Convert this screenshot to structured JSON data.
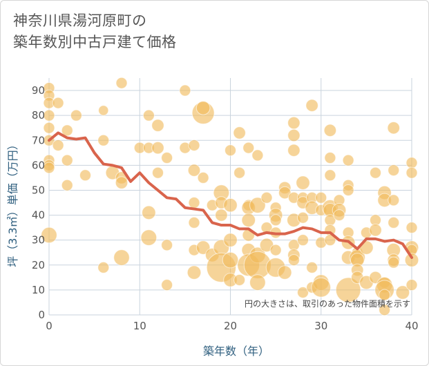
{
  "title_lines": [
    "神奈川県湯河原町の",
    "築年数別中古戸建て価格"
  ],
  "chart_data": {
    "type": "scatter",
    "title": "神奈川県湯河原町の築年数別中古戸建て価格",
    "xlabel": "築年数（年）",
    "ylabel": "坪（3.3㎡）単価（万円）",
    "xlim": [
      0,
      40
    ],
    "ylim": [
      0,
      95
    ],
    "xticks": [
      0,
      10,
      20,
      30,
      40
    ],
    "yticks": [
      0,
      10,
      20,
      30,
      40,
      50,
      60,
      70,
      80,
      90
    ],
    "grid": true,
    "note": "円の大きさは、取引のあった物件面積を示す",
    "colors": {
      "bubble": "#f0b95a",
      "line": "#d9644c",
      "grid": "#c9d3dd",
      "axis_title": "#2f5f7f"
    },
    "series": [
      {
        "type": "scatter",
        "points": [
          {
            "x": 0,
            "y": 91,
            "s": 1
          },
          {
            "x": 0,
            "y": 88,
            "s": 1
          },
          {
            "x": 0,
            "y": 85,
            "s": 1
          },
          {
            "x": 0,
            "y": 80,
            "s": 1
          },
          {
            "x": 0,
            "y": 75,
            "s": 1
          },
          {
            "x": 0,
            "y": 70,
            "s": 1
          },
          {
            "x": 0,
            "y": 62,
            "s": 1
          },
          {
            "x": 0,
            "y": 60,
            "s": 1
          },
          {
            "x": 0,
            "y": 59,
            "s": 1
          },
          {
            "x": 0,
            "y": 32,
            "s": 2
          },
          {
            "x": 1,
            "y": 85,
            "s": 1
          },
          {
            "x": 1,
            "y": 68,
            "s": 1
          },
          {
            "x": 2,
            "y": 74,
            "s": 1
          },
          {
            "x": 2,
            "y": 62,
            "s": 1
          },
          {
            "x": 2,
            "y": 52,
            "s": 1
          },
          {
            "x": 3,
            "y": 80,
            "s": 1
          },
          {
            "x": 4,
            "y": 56,
            "s": 1
          },
          {
            "x": 6,
            "y": 82,
            "s": 0.8
          },
          {
            "x": 6,
            "y": 70,
            "s": 1
          },
          {
            "x": 6,
            "y": 19,
            "s": 1
          },
          {
            "x": 7,
            "y": 57,
            "s": 1.5
          },
          {
            "x": 8,
            "y": 93,
            "s": 1
          },
          {
            "x": 8,
            "y": 55,
            "s": 1.2
          },
          {
            "x": 8,
            "y": 53,
            "s": 1.2
          },
          {
            "x": 8,
            "y": 23,
            "s": 2
          },
          {
            "x": 10,
            "y": 67,
            "s": 1
          },
          {
            "x": 11,
            "y": 80,
            "s": 1
          },
          {
            "x": 11,
            "y": 67,
            "s": 1
          },
          {
            "x": 11,
            "y": 41,
            "s": 1.5
          },
          {
            "x": 11,
            "y": 31,
            "s": 2
          },
          {
            "x": 12,
            "y": 76,
            "s": 1.2
          },
          {
            "x": 12,
            "y": 67,
            "s": 1.2
          },
          {
            "x": 12,
            "y": 57,
            "s": 1
          },
          {
            "x": 13,
            "y": 63,
            "s": 1
          },
          {
            "x": 13,
            "y": 28,
            "s": 1
          },
          {
            "x": 13,
            "y": 12,
            "s": 1
          },
          {
            "x": 15,
            "y": 90,
            "s": 1
          },
          {
            "x": 15,
            "y": 67,
            "s": 1
          },
          {
            "x": 16,
            "y": 68,
            "s": 1
          },
          {
            "x": 16,
            "y": 58,
            "s": 1.2
          },
          {
            "x": 16,
            "y": 45,
            "s": 1
          },
          {
            "x": 16,
            "y": 37,
            "s": 1
          },
          {
            "x": 16,
            "y": 26,
            "s": 1
          },
          {
            "x": 16,
            "y": 17,
            "s": 1.5
          },
          {
            "x": 17,
            "y": 81,
            "s": 4
          },
          {
            "x": 17,
            "y": 83,
            "s": 1.5
          },
          {
            "x": 17,
            "y": 55,
            "s": 1
          },
          {
            "x": 17,
            "y": 27,
            "s": 1.5
          },
          {
            "x": 18,
            "y": 44,
            "s": 1
          },
          {
            "x": 18,
            "y": 24,
            "s": 1.5
          },
          {
            "x": 19,
            "y": 49,
            "s": 2
          },
          {
            "x": 19,
            "y": 45,
            "s": 1.2
          },
          {
            "x": 19,
            "y": 40,
            "s": 1.2
          },
          {
            "x": 19,
            "y": 27,
            "s": 2
          },
          {
            "x": 19,
            "y": 19,
            "s": 7
          },
          {
            "x": 20,
            "y": 66,
            "s": 1
          },
          {
            "x": 20,
            "y": 44,
            "s": 1.5
          },
          {
            "x": 20,
            "y": 30,
            "s": 1.5
          },
          {
            "x": 20,
            "y": 22,
            "s": 2
          },
          {
            "x": 20,
            "y": 14,
            "s": 1.5
          },
          {
            "x": 21,
            "y": 73,
            "s": 1.2
          },
          {
            "x": 21,
            "y": 57,
            "s": 1
          },
          {
            "x": 21,
            "y": 14,
            "s": 1
          },
          {
            "x": 22,
            "y": 67,
            "s": 1
          },
          {
            "x": 22,
            "y": 44,
            "s": 1
          },
          {
            "x": 22,
            "y": 43,
            "s": 1.5
          },
          {
            "x": 22,
            "y": 38,
            "s": 1.5
          },
          {
            "x": 22,
            "y": 32,
            "s": 1.2
          },
          {
            "x": 22,
            "y": 26,
            "s": 1.5
          },
          {
            "x": 22,
            "y": 20,
            "s": 4
          },
          {
            "x": 23,
            "y": 64,
            "s": 1
          },
          {
            "x": 23,
            "y": 44,
            "s": 2
          },
          {
            "x": 23,
            "y": 24,
            "s": 2
          },
          {
            "x": 23,
            "y": 20,
            "s": 6
          },
          {
            "x": 23,
            "y": 13,
            "s": 2
          },
          {
            "x": 24,
            "y": 47,
            "s": 1
          },
          {
            "x": 24,
            "y": 35,
            "s": 1
          },
          {
            "x": 24,
            "y": 28,
            "s": 1.5
          },
          {
            "x": 25,
            "y": 43,
            "s": 1
          },
          {
            "x": 25,
            "y": 40,
            "s": 1.5
          },
          {
            "x": 25,
            "y": 38,
            "s": 1
          },
          {
            "x": 25,
            "y": 33,
            "s": 1
          },
          {
            "x": 25,
            "y": 26,
            "s": 1
          },
          {
            "x": 25,
            "y": 19,
            "s": 3
          },
          {
            "x": 26,
            "y": 51,
            "s": 1.2
          },
          {
            "x": 26,
            "y": 49,
            "s": 1.2
          },
          {
            "x": 26,
            "y": 17,
            "s": 1.5
          },
          {
            "x": 27,
            "y": 77,
            "s": 1.2
          },
          {
            "x": 27,
            "y": 72,
            "s": 1.2
          },
          {
            "x": 27,
            "y": 66,
            "s": 1.2
          },
          {
            "x": 27,
            "y": 47,
            "s": 1
          },
          {
            "x": 27,
            "y": 38,
            "s": 1.5
          },
          {
            "x": 27,
            "y": 28,
            "s": 1
          },
          {
            "x": 27,
            "y": 24,
            "s": 1.2
          },
          {
            "x": 27,
            "y": 22,
            "s": 1
          },
          {
            "x": 28,
            "y": 53,
            "s": 1.5
          },
          {
            "x": 28,
            "y": 47,
            "s": 1
          },
          {
            "x": 28,
            "y": 45,
            "s": 1.2
          },
          {
            "x": 28,
            "y": 39,
            "s": 1
          },
          {
            "x": 28,
            "y": 30,
            "s": 1
          },
          {
            "x": 28,
            "y": 9,
            "s": 1
          },
          {
            "x": 29,
            "y": 84,
            "s": 1.2
          },
          {
            "x": 29,
            "y": 47,
            "s": 1
          },
          {
            "x": 29,
            "y": 43,
            "s": 1.5
          },
          {
            "x": 29,
            "y": 19,
            "s": 1
          },
          {
            "x": 29,
            "y": 11,
            "s": 1
          },
          {
            "x": 30,
            "y": 47,
            "s": 1
          },
          {
            "x": 30,
            "y": 42,
            "s": 1
          },
          {
            "x": 30,
            "y": 29,
            "s": 1
          },
          {
            "x": 30,
            "y": 13,
            "s": 2
          },
          {
            "x": 30,
            "y": 11,
            "s": 3
          },
          {
            "x": 31,
            "y": 74,
            "s": 1.2
          },
          {
            "x": 31,
            "y": 63,
            "s": 1
          },
          {
            "x": 31,
            "y": 56,
            "s": 1
          },
          {
            "x": 31,
            "y": 43,
            "s": 2
          },
          {
            "x": 31,
            "y": 42,
            "s": 1.5
          },
          {
            "x": 31,
            "y": 38,
            "s": 1
          },
          {
            "x": 31,
            "y": 34,
            "s": 1
          },
          {
            "x": 31,
            "y": 30,
            "s": 1
          },
          {
            "x": 32,
            "y": 46,
            "s": 1
          },
          {
            "x": 32,
            "y": 42,
            "s": 1.5
          },
          {
            "x": 32,
            "y": 40,
            "s": 1
          },
          {
            "x": 33,
            "y": 62,
            "s": 1
          },
          {
            "x": 33,
            "y": 52,
            "s": 1
          },
          {
            "x": 33,
            "y": 50,
            "s": 1
          },
          {
            "x": 33,
            "y": 33,
            "s": 1
          },
          {
            "x": 33,
            "y": 29,
            "s": 1.5
          },
          {
            "x": 33,
            "y": 23,
            "s": 1.5
          },
          {
            "x": 33,
            "y": 10,
            "s": 5
          },
          {
            "x": 34,
            "y": 25,
            "s": 1
          },
          {
            "x": 34,
            "y": 23,
            "s": 2
          },
          {
            "x": 34,
            "y": 22,
            "s": 1.5
          },
          {
            "x": 34,
            "y": 18,
            "s": 1.2
          },
          {
            "x": 34,
            "y": 15,
            "s": 1.2
          },
          {
            "x": 35,
            "y": 13,
            "s": 1.5
          },
          {
            "x": 35,
            "y": 33,
            "s": 1
          },
          {
            "x": 35,
            "y": 27,
            "s": 1.5
          },
          {
            "x": 36,
            "y": 57,
            "s": 1
          },
          {
            "x": 36,
            "y": 38,
            "s": 1
          },
          {
            "x": 36,
            "y": 34,
            "s": 1.2
          },
          {
            "x": 36,
            "y": 15,
            "s": 1.2
          },
          {
            "x": 37,
            "y": 49,
            "s": 1.5
          },
          {
            "x": 37,
            "y": 46,
            "s": 1.5
          },
          {
            "x": 37,
            "y": 13,
            "s": 1
          },
          {
            "x": 37,
            "y": 12,
            "s": 2
          },
          {
            "x": 37,
            "y": 10,
            "s": 3
          },
          {
            "x": 37,
            "y": 8,
            "s": 1
          },
          {
            "x": 37,
            "y": 2,
            "s": 1
          },
          {
            "x": 38,
            "y": 75,
            "s": 1.2
          },
          {
            "x": 38,
            "y": 58,
            "s": 1
          },
          {
            "x": 38,
            "y": 46,
            "s": 1
          },
          {
            "x": 38,
            "y": 37,
            "s": 1
          },
          {
            "x": 38,
            "y": 26,
            "s": 1.5
          },
          {
            "x": 38,
            "y": 22,
            "s": 1.2
          },
          {
            "x": 38,
            "y": 21,
            "s": 1
          },
          {
            "x": 39,
            "y": 9,
            "s": 1.5
          },
          {
            "x": 40,
            "y": 61,
            "s": 1
          },
          {
            "x": 40,
            "y": 57,
            "s": 1
          },
          {
            "x": 40,
            "y": 35,
            "s": 1
          },
          {
            "x": 40,
            "y": 27,
            "s": 1.5
          },
          {
            "x": 40,
            "y": 26,
            "s": 1
          },
          {
            "x": 40,
            "y": 22,
            "s": 1.5
          },
          {
            "x": 40,
            "y": 12,
            "s": 1
          }
        ]
      },
      {
        "type": "line",
        "x": [
          0,
          1,
          2,
          3,
          4,
          5,
          6,
          7,
          8,
          9,
          10,
          11,
          12,
          13,
          14,
          15,
          16,
          17,
          18,
          19,
          20,
          21,
          22,
          23,
          24,
          25,
          26,
          27,
          28,
          29,
          30,
          31,
          32,
          33,
          34,
          35,
          36,
          37,
          38,
          39,
          40
        ],
        "y": [
          70,
          73,
          71,
          70.5,
          71,
          65,
          60.5,
          60,
          59,
          53.5,
          57,
          53,
          50,
          47,
          46.5,
          43,
          42.5,
          42,
          37,
          36,
          36,
          34.5,
          34.5,
          32,
          33,
          32.5,
          32.5,
          33.5,
          35,
          34.5,
          33,
          33,
          30,
          29.5,
          26.5,
          30.5,
          30.5,
          29.5,
          30,
          28.5,
          23
        ]
      }
    ]
  }
}
